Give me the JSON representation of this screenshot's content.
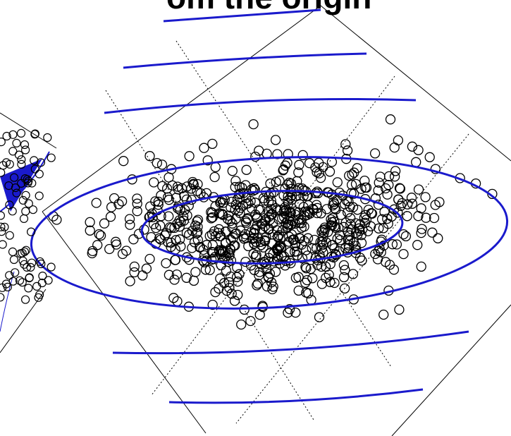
{
  "header": {
    "title": "om the origin"
  }
}
